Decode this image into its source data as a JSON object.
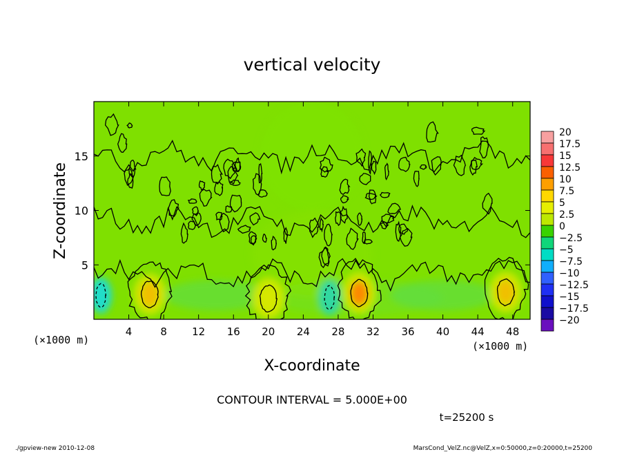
{
  "chart_data": {
    "type": "heatmap",
    "title": "vertical velocity",
    "xlabel": "X-coordinate",
    "ylabel": "Z-coordinate",
    "x_unit": "(×1000 m)",
    "y_unit": "(×1000 m)",
    "xlim": [
      0,
      50
    ],
    "ylim": [
      0,
      20
    ],
    "x_ticks": [
      "4",
      "8",
      "12",
      "16",
      "20",
      "24",
      "28",
      "32",
      "36",
      "40",
      "44",
      "48"
    ],
    "x_tick_values": [
      4,
      8,
      12,
      16,
      20,
      24,
      28,
      32,
      36,
      40,
      44,
      48
    ],
    "y_ticks": [
      "5",
      "10",
      "15"
    ],
    "y_tick_values": [
      5,
      10,
      15
    ],
    "colorbar": {
      "labels": [
        "20",
        "17.5",
        "15",
        "12.5",
        "10",
        "7.5",
        "5",
        "2.5",
        "0",
        "−2.5",
        "−5",
        "−7.5",
        "−10",
        "−12.5",
        "−15",
        "−17.5",
        "−20"
      ],
      "colors": [
        "#f7a0a0",
        "#f77070",
        "#f83838",
        "#fb6000",
        "#fe9f00",
        "#ffd800",
        "#e6ee00",
        "#bde800",
        "#39d200",
        "#10d67a",
        "#00dcc4",
        "#10aefc",
        "#3060fe",
        "#1f30f4",
        "#1010cc",
        "#1a0ba3",
        "#6a0fbe"
      ]
    },
    "updraft_cores": [
      {
        "x": 6.4,
        "z": 2.3,
        "peak_w": 7.5
      },
      {
        "x": 20,
        "z": 1.9,
        "peak_w": 5
      },
      {
        "x": 30.4,
        "z": 2.4,
        "peak_w": 10
      },
      {
        "x": 47.2,
        "z": 2.5,
        "peak_w": 7.5
      }
    ],
    "downdraft_cores": [
      {
        "x": 0.8,
        "z": 2.2,
        "peak_w": -5
      },
      {
        "x": 27,
        "z": 2.0,
        "peak_w": -2.5
      }
    ],
    "contour_interval": "CONTOUR INTERVAL = 5.000E+00",
    "time_label": "t=25200 s"
  },
  "footer": {
    "left": "./gpview-new  2010-12-08",
    "right": "MarsCond_VelZ.nc@VelZ,x=0:50000,z=0:20000,t=25200"
  }
}
